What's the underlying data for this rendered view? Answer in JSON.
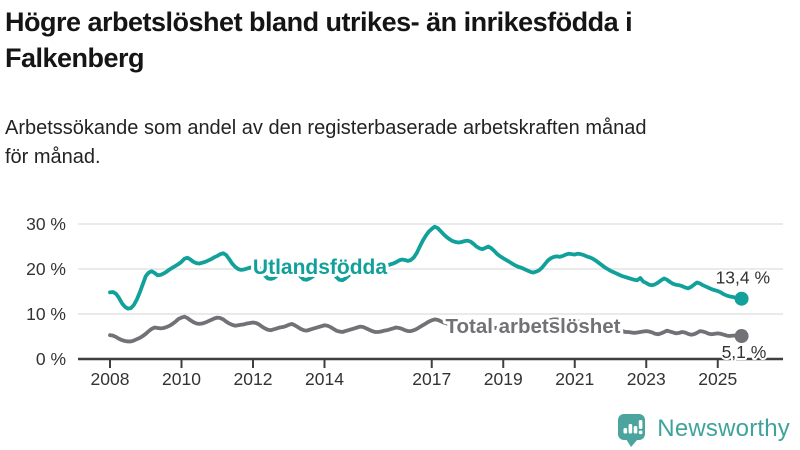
{
  "header": {
    "title_lines": [
      "Högre arbetslöshet bland utrikes- än inrikesfödda i",
      "Falkenberg"
    ],
    "subtitle_lines": [
      "Arbetssökande som andel av den registerbaserade arbetskraften månad",
      "för månad."
    ]
  },
  "chart_data": {
    "type": "line",
    "title": "Högre arbetslöshet bland utrikes- än inrikesfödda i Falkenberg",
    "subtitle": "Arbetssökande som andel av den registerbaserade arbetskraften månad för månad.",
    "unit": "%",
    "decimal_separator": ",",
    "x_interval": "monthly",
    "x_start": "2008-01",
    "x_end": "2025-09",
    "ylim": [
      0,
      32
    ],
    "grid": true,
    "y_ticks": [
      {
        "value": 30,
        "label": "30 %"
      },
      {
        "value": 20,
        "label": "20 %"
      },
      {
        "value": 10,
        "label": "10 %"
      },
      {
        "value": 0,
        "label": "0 %"
      }
    ],
    "x_ticks": [
      {
        "year": 2008,
        "label": "2008"
      },
      {
        "year": 2010,
        "label": "2010"
      },
      {
        "year": 2012,
        "label": "2012"
      },
      {
        "year": 2014,
        "label": "2014"
      },
      {
        "year": 2017,
        "label": "2017"
      },
      {
        "year": 2019,
        "label": "2019"
      },
      {
        "year": 2021,
        "label": "2021"
      },
      {
        "year": 2023,
        "label": "2023"
      },
      {
        "year": 2025,
        "label": "2025"
      }
    ],
    "series": [
      {
        "name": "Utlandsfödda",
        "color": "#12a19a",
        "end_value": 13.4,
        "end_label": "13,4 %",
        "values": [
          14.8,
          14.9,
          14.5,
          13.6,
          12.4,
          11.6,
          11.2,
          11.3,
          12.0,
          13.2,
          14.8,
          16.6,
          18.4,
          19.2,
          19.5,
          19.1,
          18.6,
          18.7,
          19.0,
          19.4,
          19.9,
          20.3,
          20.7,
          21.1,
          21.6,
          22.3,
          22.5,
          22.1,
          21.6,
          21.3,
          21.2,
          21.4,
          21.6,
          21.9,
          22.2,
          22.6,
          22.9,
          23.3,
          23.5,
          23.1,
          22.2,
          21.2,
          20.5,
          20.0,
          19.8,
          19.9,
          20.1,
          20.3,
          20.4,
          20.5,
          20.2,
          19.4,
          18.5,
          17.9,
          17.8,
          18.0,
          18.5,
          19.0,
          19.4,
          19.7,
          19.9,
          20.2,
          20.0,
          19.2,
          18.3,
          17.7,
          17.6,
          17.9,
          18.3,
          18.8,
          19.1,
          19.4,
          19.6,
          20.0,
          19.8,
          19.0,
          18.2,
          17.6,
          17.5,
          17.9,
          18.5,
          19.0,
          19.5,
          19.8,
          20.2,
          20.6,
          20.8,
          20.4,
          20.0,
          19.8,
          19.9,
          20.2,
          20.5,
          20.8,
          21.0,
          21.2,
          21.5,
          21.9,
          22.1,
          22.0,
          21.8,
          22.0,
          22.6,
          23.6,
          25.0,
          26.3,
          27.4,
          28.3,
          28.9,
          29.4,
          29.1,
          28.4,
          27.7,
          27.1,
          26.6,
          26.2,
          26.0,
          25.9,
          26.0,
          26.2,
          26.3,
          26.1,
          25.6,
          25.0,
          24.6,
          24.4,
          24.7,
          25.0,
          24.6,
          24.0,
          23.3,
          22.8,
          22.4,
          22.0,
          21.6,
          21.2,
          20.8,
          20.5,
          20.3,
          20.0,
          19.7,
          19.4,
          19.2,
          19.4,
          19.7,
          20.3,
          21.1,
          21.9,
          22.4,
          22.7,
          22.8,
          22.7,
          22.9,
          23.2,
          23.4,
          23.3,
          23.2,
          23.4,
          23.3,
          23.1,
          22.8,
          22.6,
          22.3,
          21.9,
          21.4,
          20.9,
          20.4,
          20.0,
          19.6,
          19.3,
          19.0,
          18.7,
          18.4,
          18.2,
          18.0,
          17.8,
          17.6,
          17.5,
          18.0,
          17.2,
          16.9,
          16.5,
          16.4,
          16.6,
          17.0,
          17.5,
          17.9,
          17.6,
          17.1,
          16.7,
          16.5,
          16.4,
          16.2,
          15.9,
          15.7,
          16.0,
          16.5,
          17.0,
          16.8,
          16.4,
          16.1,
          15.8,
          15.5,
          15.3,
          15.1,
          14.8,
          14.4,
          14.1,
          13.9,
          13.8,
          13.6,
          13.5,
          13.4
        ]
      },
      {
        "name": "Total arbetslöshet",
        "color": "#727276",
        "end_value": 5.1,
        "end_label": "5,1 %",
        "values": [
          5.3,
          5.2,
          4.9,
          4.5,
          4.2,
          4.0,
          3.9,
          3.9,
          4.1,
          4.4,
          4.7,
          5.1,
          5.6,
          6.2,
          6.7,
          7.0,
          6.9,
          6.8,
          6.9,
          7.1,
          7.4,
          7.8,
          8.3,
          8.9,
          9.2,
          9.4,
          9.1,
          8.6,
          8.2,
          7.9,
          7.8,
          7.9,
          8.1,
          8.4,
          8.7,
          9.0,
          9.2,
          9.1,
          8.8,
          8.3,
          7.9,
          7.6,
          7.4,
          7.5,
          7.6,
          7.7,
          7.9,
          8.0,
          8.1,
          8.0,
          7.7,
          7.2,
          6.8,
          6.5,
          6.4,
          6.6,
          6.8,
          7.0,
          7.1,
          7.3,
          7.6,
          7.8,
          7.5,
          7.1,
          6.7,
          6.4,
          6.3,
          6.5,
          6.7,
          6.9,
          7.1,
          7.3,
          7.5,
          7.4,
          7.1,
          6.7,
          6.3,
          6.1,
          6.0,
          6.2,
          6.4,
          6.6,
          6.8,
          7.0,
          7.2,
          7.1,
          6.8,
          6.5,
          6.2,
          6.0,
          6.0,
          6.1,
          6.3,
          6.4,
          6.6,
          6.8,
          7.0,
          6.9,
          6.7,
          6.4,
          6.2,
          6.2,
          6.4,
          6.7,
          7.1,
          7.5,
          7.9,
          8.3,
          8.6,
          8.8,
          8.7,
          8.4,
          8.1,
          7.9,
          7.7,
          7.6,
          7.6,
          7.7,
          7.7,
          7.8,
          7.8,
          7.7,
          7.5,
          7.2,
          7.0,
          6.9,
          7.0,
          7.1,
          7.0,
          6.9,
          6.9,
          7.0,
          7.3,
          7.2,
          7.0,
          6.9,
          6.8,
          6.8,
          6.9,
          6.9,
          6.8,
          6.8,
          6.9,
          7.0,
          7.2,
          7.6,
          8.1,
          8.5,
          8.7,
          8.8,
          8.8,
          8.7,
          8.6,
          8.5,
          8.5,
          8.5,
          8.5,
          8.4,
          8.2,
          8.0,
          7.8,
          7.6,
          7.5,
          7.4,
          7.3,
          7.2,
          7.1,
          7.0,
          7.0,
          6.8,
          6.6,
          6.4,
          6.2,
          6.0,
          6.0,
          5.9,
          5.8,
          5.9,
          6.0,
          6.1,
          6.2,
          6.1,
          5.9,
          5.6,
          5.5,
          5.7,
          6.0,
          6.3,
          6.1,
          5.9,
          5.7,
          5.8,
          6.0,
          5.9,
          5.6,
          5.4,
          5.5,
          5.8,
          6.2,
          6.1,
          5.9,
          5.6,
          5.5,
          5.6,
          5.7,
          5.6,
          5.4,
          5.2,
          5.1,
          5.2,
          5.2,
          5.1,
          5.1
        ]
      }
    ],
    "axis_color": "#3f3f3f",
    "gridline_color": "#e3e3e3",
    "tick_label_color": "#333333"
  },
  "footer": {
    "brand": "Newsworthy",
    "brand_color": "#3fa39c",
    "icon_color": "#4ba49e"
  }
}
